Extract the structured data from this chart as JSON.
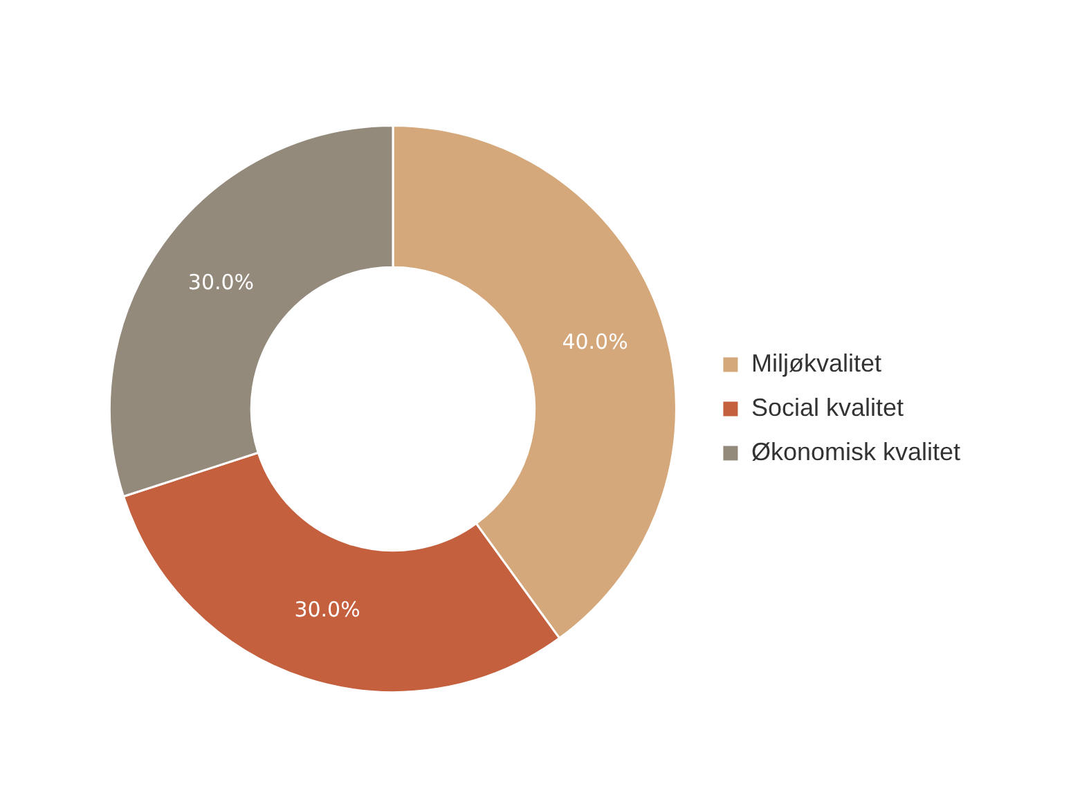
{
  "chart_data": {
    "type": "donut",
    "categories": [
      "Miljøkvalitet",
      "Social kvalitet",
      "Økonomisk kvalitet"
    ],
    "values": [
      40,
      30,
      30
    ],
    "colors": [
      "#d4a87a",
      "#c4603e",
      "#948a7c"
    ],
    "value_labels": [
      "40.0%",
      "30.0%",
      "30.0%"
    ],
    "legend": "right"
  }
}
